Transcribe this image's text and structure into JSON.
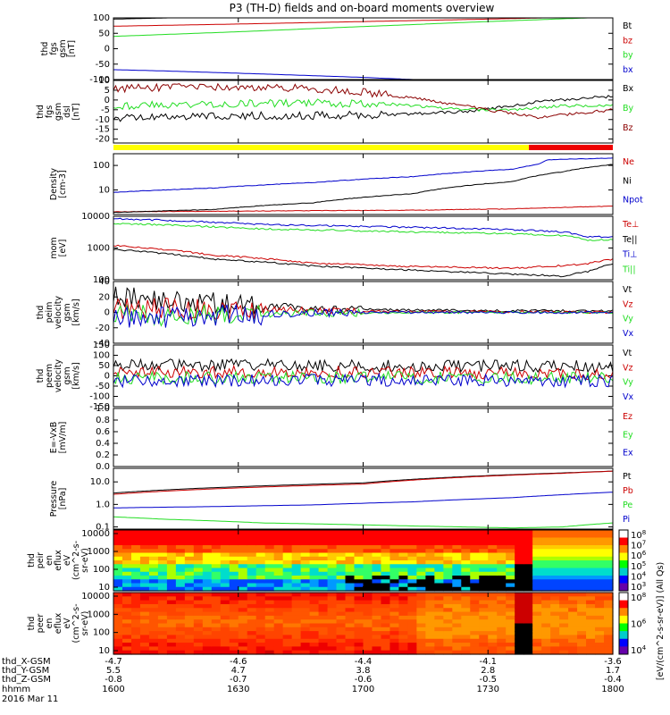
{
  "title": "P3 (TH-D) fields and on-board moments overview",
  "colors": {
    "black": "#000000",
    "red": "#cc0000",
    "green": "#22dd22",
    "blue": "#0000cc",
    "darkred": "#8b0000",
    "yellow": "#ffff00",
    "bar_red": "#ee0000"
  },
  "chart_data": [
    {
      "id": "fgs_gsm",
      "type": "line",
      "ylabel_lines": [
        "thd",
        "fgs",
        "gsm",
        "[nT]"
      ],
      "ylim": [
        -100,
        100
      ],
      "ytick_labels": [
        "100",
        "50",
        "0",
        "-50",
        "-100"
      ],
      "series": [
        {
          "name": "Bt",
          "color": "black",
          "x": [
            0,
            0.25,
            0.5,
            0.75,
            1
          ],
          "y": [
            96,
            105,
            114,
            123,
            135
          ]
        },
        {
          "name": "bz",
          "color": "red",
          "x": [
            0,
            0.25,
            0.5,
            0.75,
            1
          ],
          "y": [
            73,
            80,
            88,
            96,
            105
          ]
        },
        {
          "name": "by",
          "color": "green",
          "x": [
            0,
            0.25,
            0.5,
            0.75,
            1
          ],
          "y": [
            40,
            55,
            72,
            88,
            103
          ]
        },
        {
          "name": "bx",
          "color": "blue",
          "x": [
            0,
            0.1,
            0.3,
            0.5,
            0.6,
            0.75,
            0.9,
            1
          ],
          "y": [
            -68,
            -72,
            -82,
            -93,
            -100,
            -112,
            -125,
            -135
          ]
        }
      ]
    },
    {
      "id": "fgs_dsl",
      "type": "line",
      "ylabel_lines": [
        "thd",
        "fgs",
        "gsm",
        "dsl",
        "[nT]"
      ],
      "ylim": [
        -22,
        10
      ],
      "ytick_labels": [
        "10",
        "5",
        "0",
        "-5",
        "-10",
        "-15",
        "-20"
      ],
      "series": [
        {
          "name": "Bx",
          "color": "black",
          "x": [
            0,
            0.2,
            0.4,
            0.55,
            0.7,
            0.8,
            0.85,
            0.9,
            1
          ],
          "y": [
            -9,
            -8,
            -8,
            -7.5,
            -6,
            -3,
            -1,
            0,
            2
          ]
        },
        {
          "name": "By",
          "color": "green",
          "x": [
            0,
            0.2,
            0.4,
            0.55,
            0.7,
            0.8,
            0.9,
            1
          ],
          "y": [
            -3,
            -2,
            -1.5,
            -2,
            -5,
            -5,
            -3,
            -3
          ]
        },
        {
          "name": "Bz",
          "color": "darkred",
          "x": [
            0,
            0.2,
            0.4,
            0.5,
            0.6,
            0.7,
            0.8,
            0.85,
            0.92,
            1
          ],
          "y": [
            6,
            6.5,
            6,
            4,
            1,
            -3,
            -7,
            -9,
            -7,
            -5
          ]
        }
      ]
    },
    {
      "id": "density",
      "type": "line",
      "log": true,
      "ylabel_lines": [
        "Density",
        "[cm-3]"
      ],
      "ylim": [
        1,
        300
      ],
      "ytick_labels": [
        "100",
        "10"
      ],
      "series": [
        {
          "name": "Ne",
          "color": "red",
          "x": [
            0,
            0.3,
            0.6,
            0.8,
            1
          ],
          "y": [
            1.3,
            1.4,
            1.5,
            1.7,
            2.2
          ]
        },
        {
          "name": "Ni",
          "color": "black",
          "x": [
            0,
            0.2,
            0.4,
            0.6,
            0.8,
            0.9,
            1
          ],
          "y": [
            1.2,
            1.6,
            3,
            7,
            22,
            55,
            110
          ]
        },
        {
          "name": "Npot",
          "color": "blue",
          "x": [
            0,
            0.2,
            0.4,
            0.6,
            0.8,
            0.85,
            0.87,
            1
          ],
          "y": [
            8,
            12,
            20,
            35,
            70,
            110,
            170,
            200
          ]
        }
      ]
    },
    {
      "id": "mom_temp",
      "type": "line",
      "log": true,
      "ylabel_lines": [
        "mom",
        "[eV]"
      ],
      "ylim": [
        100,
        10000
      ],
      "ytick_labels": [
        "10000",
        "1000",
        "100"
      ],
      "series": [
        {
          "name": "Te⊥",
          "color": "red",
          "x": [
            0,
            0.2,
            0.4,
            0.6,
            0.8,
            0.9,
            0.95,
            1
          ],
          "y": [
            1200,
            600,
            330,
            260,
            230,
            280,
            320,
            450
          ]
        },
        {
          "name": "Te||",
          "color": "black",
          "x": [
            0,
            0.2,
            0.4,
            0.6,
            0.8,
            0.9,
            0.95,
            1
          ],
          "y": [
            900,
            450,
            270,
            200,
            150,
            130,
            180,
            320
          ]
        },
        {
          "name": "Ti⊥",
          "color": "blue",
          "x": [
            0,
            0.3,
            0.6,
            0.8,
            0.9,
            0.95,
            1
          ],
          "y": [
            8500,
            5500,
            4500,
            3800,
            3200,
            2300,
            2200
          ]
        },
        {
          "name": "Ti||",
          "color": "green",
          "x": [
            0,
            0.3,
            0.6,
            0.8,
            0.9,
            0.95,
            1
          ],
          "y": [
            6000,
            4000,
            3200,
            2800,
            2500,
            1800,
            1800
          ]
        }
      ]
    },
    {
      "id": "peim_velocity",
      "type": "line",
      "ylabel_lines": [
        "thd",
        "peim",
        "velocity",
        "gsm",
        "[km/s]"
      ],
      "ylim": [
        -40,
        40
      ],
      "ytick_labels": [
        "40",
        "20",
        "0",
        "-20",
        "-40"
      ],
      "series": [
        {
          "name": "Vt",
          "color": "black",
          "x": [
            0,
            0.2,
            0.4,
            0.6,
            0.8,
            1
          ],
          "y": [
            20,
            12,
            5,
            3,
            2,
            2
          ]
        },
        {
          "name": "Vz",
          "color": "red",
          "x": [
            0,
            0.2,
            0.4,
            0.6,
            0.8,
            1
          ],
          "y": [
            5,
            4,
            2,
            1,
            1,
            0
          ]
        },
        {
          "name": "Vy",
          "color": "green",
          "x": [
            0,
            0.2,
            0.4,
            0.6,
            0.8,
            1
          ],
          "y": [
            -5,
            -3,
            -1,
            0,
            0,
            0
          ]
        },
        {
          "name": "Vx",
          "color": "blue",
          "x": [
            0,
            0.2,
            0.4,
            0.6,
            0.8,
            1
          ],
          "y": [
            -8,
            -4,
            -1,
            0,
            0,
            0
          ]
        }
      ]
    },
    {
      "id": "peem_velocity",
      "type": "line",
      "ylabel_lines": [
        "thd",
        "peem",
        "velocity",
        "gsm",
        "[km/s]"
      ],
      "ylim": [
        -150,
        150
      ],
      "ytick_labels": [
        "150",
        "100",
        "50",
        "0",
        "-50",
        "-100",
        "-150"
      ],
      "series": [
        {
          "name": "Vt",
          "color": "black",
          "x": [
            0,
            0.5,
            1
          ],
          "y": [
            55,
            50,
            45
          ]
        },
        {
          "name": "Vz",
          "color": "red",
          "x": [
            0,
            0.5,
            1
          ],
          "y": [
            20,
            18,
            10
          ]
        },
        {
          "name": "Vy",
          "color": "green",
          "x": [
            0,
            0.5,
            1
          ],
          "y": [
            -10,
            -8,
            -12
          ]
        },
        {
          "name": "Vx",
          "color": "blue",
          "x": [
            0,
            0.5,
            1
          ],
          "y": [
            -25,
            -20,
            -25
          ]
        }
      ]
    },
    {
      "id": "efield",
      "type": "line",
      "ylabel_lines": [
        "E=-VxB",
        "[mV/m]"
      ],
      "ylim": [
        0,
        1
      ],
      "ytick_labels": [
        "1.0",
        "0.8",
        "0.6",
        "0.4",
        "0.2",
        "0.0"
      ],
      "series": [
        {
          "name": "Ez",
          "color": "red",
          "x": [],
          "y": []
        },
        {
          "name": "Ey",
          "color": "green",
          "x": [],
          "y": []
        },
        {
          "name": "Ex",
          "color": "blue",
          "x": [],
          "y": []
        }
      ]
    },
    {
      "id": "pressure",
      "type": "line",
      "log": true,
      "ylabel_lines": [
        "Pressure",
        "[nPa]"
      ],
      "ylim": [
        0.08,
        40
      ],
      "ytick_labels": [
        "10.0",
        "1.0",
        "0.1"
      ],
      "series": [
        {
          "name": "Pt",
          "color": "black",
          "x": [
            0,
            0.5,
            0.9,
            1
          ],
          "y": [
            3.2,
            9,
            25,
            30
          ]
        },
        {
          "name": "Pb",
          "color": "red",
          "x": [
            0,
            0.5,
            0.9,
            1
          ],
          "y": [
            2.8,
            8,
            24,
            30
          ]
        },
        {
          "name": "Pe",
          "color": "green",
          "x": [
            0,
            0.1,
            0.3,
            0.6,
            0.8,
            0.9,
            1
          ],
          "y": [
            0.28,
            0.22,
            0.15,
            0.11,
            0.09,
            0.1,
            0.15
          ]
        },
        {
          "name": "Pi",
          "color": "blue",
          "x": [
            0,
            0.2,
            0.4,
            0.6,
            0.8,
            0.9,
            1
          ],
          "y": [
            0.7,
            0.8,
            0.95,
            1.3,
            2,
            2.7,
            3.5
          ]
        }
      ]
    },
    {
      "id": "peir_spec",
      "type": "heatmap",
      "ylabel_lines": [
        "thd",
        "peir",
        "en",
        "eflux",
        "eV",
        "(cm^2-s-",
        "sr-eV)"
      ],
      "ytick_labels": [
        "10000",
        "1000",
        "100",
        "10"
      ],
      "colorbar_ticks": [
        "10^8",
        "10^7",
        "10^6",
        "10^5",
        "10^4",
        "10^3"
      ]
    },
    {
      "id": "peer_spec",
      "type": "heatmap",
      "ylabel_lines": [
        "thd",
        "peer",
        "en",
        "eflux",
        "eV",
        "(cm^2-s-",
        "sr-eV)"
      ],
      "ytick_labels": [
        "10000",
        "1000",
        "100",
        "10"
      ],
      "colorbar_ticks": [
        "10^8",
        "10^6",
        "10^4"
      ]
    }
  ],
  "colorbar_label": "[eV/(cm^2-s-sr-eV)] (All Qs)",
  "xaxis": {
    "rows": [
      {
        "label": "thd_X-GSM",
        "values": [
          "-4.7",
          "-4.6",
          "-4.4",
          "-4.1",
          "-3.6"
        ]
      },
      {
        "label": "thd_Y-GSM",
        "values": [
          "5.5",
          "4.7",
          "3.8",
          "2.8",
          "1.7"
        ]
      },
      {
        "label": "thd_Z-GSM",
        "values": [
          "-0.8",
          "-0.7",
          "-0.6",
          "-0.5",
          "-0.4"
        ]
      },
      {
        "label": "hhmm",
        "values": [
          "1600",
          "1630",
          "1700",
          "1730",
          "1800"
        ]
      }
    ],
    "date": "2016 Mar 11"
  }
}
